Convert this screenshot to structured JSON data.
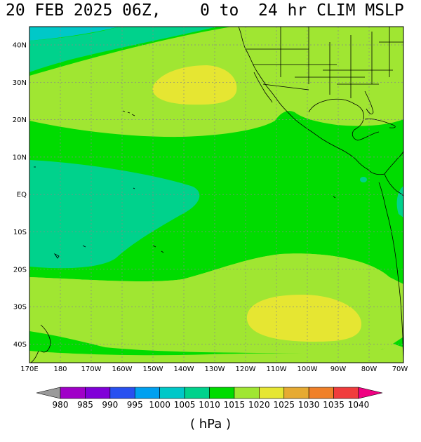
{
  "title": "20 FEB 2025 06Z,    0 to  24 hr CLIM MSLP",
  "units_label": "( hPa )",
  "lat_labels": [
    "40N",
    "30N",
    "20N",
    "10N",
    "EQ",
    "10S",
    "20S",
    "30S",
    "40S"
  ],
  "lon_labels": [
    "170E",
    "180",
    "170W",
    "160W",
    "150W",
    "140W",
    "130W",
    "120W",
    "110W",
    "100W",
    "90W",
    "80W",
    "70W"
  ],
  "colorbar": {
    "labels": [
      "980",
      "985",
      "990",
      "995",
      "1000",
      "1005",
      "1010",
      "1015",
      "1020",
      "1025",
      "1030",
      "1035",
      "1040"
    ],
    "colors": [
      "#9a9a9a",
      "#a000c8",
      "#8000d8",
      "#2850f0",
      "#00a0f0",
      "#00c8c8",
      "#00d28c",
      "#00dc00",
      "#a0e632",
      "#e6e632",
      "#e6aa32",
      "#f08028",
      "#f03c3c",
      "#f00082"
    ]
  },
  "field_colors": {
    "c1005": "#00c8c8",
    "c1010": "#00d28c",
    "c1015": "#00dc00",
    "c1020": "#a0e632",
    "c1025": "#e6e632"
  }
}
